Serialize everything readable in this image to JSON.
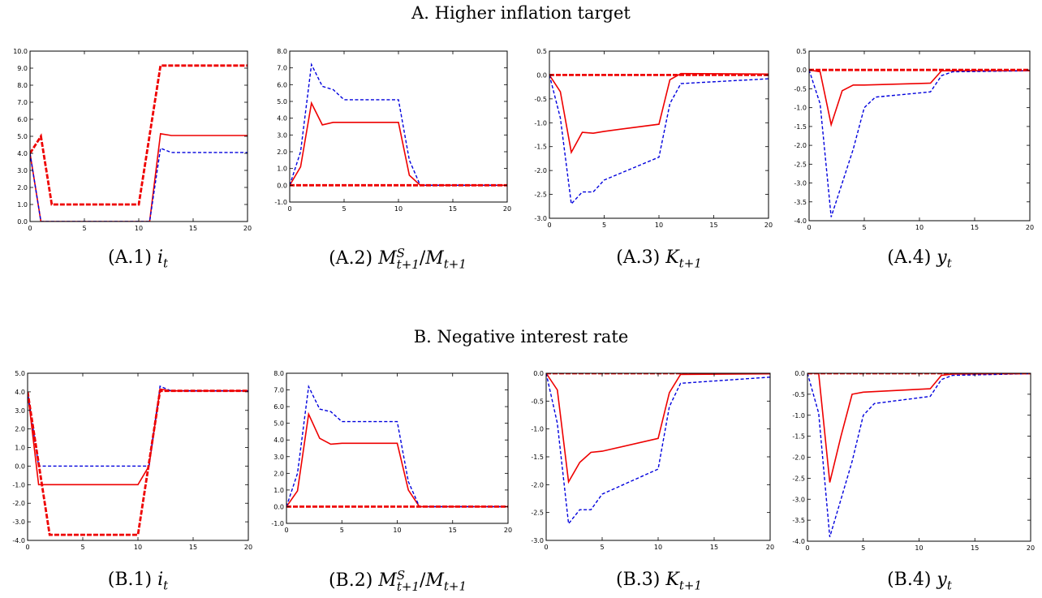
{
  "panels": [
    {
      "title": "A. Higher inflation target"
    },
    {
      "title": "B. Negative interest rate"
    }
  ],
  "colors": {
    "solid": "#ee0000",
    "dashed": "#0000dd",
    "thick_dashed": "#ee0000"
  },
  "chart_data": [
    {
      "id": "A.1",
      "type": "line",
      "caption_prefix": "(A.1)",
      "variable": "i",
      "sub": "t",
      "sup": "",
      "denominator": "",
      "denominator_sub": "",
      "xlim": [
        0,
        20
      ],
      "ylim": [
        0,
        10
      ],
      "xticks": [
        0,
        5,
        10,
        15,
        20
      ],
      "yticks": [
        0.0,
        1.0,
        2.0,
        3.0,
        4.0,
        5.0,
        6.0,
        7.0,
        8.0,
        9.0,
        10.0
      ],
      "ytick_labels": [
        "0.0",
        "1.0",
        "2.0",
        "3.0",
        "4.0",
        "5.0",
        "6.0",
        "7.0",
        "8.0",
        "9.0",
        "10.0"
      ],
      "series": [
        {
          "style": "solid",
          "points": [
            [
              0,
              4.0
            ],
            [
              1,
              0.0
            ],
            [
              2,
              0.0
            ],
            [
              10,
              0.0
            ],
            [
              11,
              0.0
            ],
            [
              12,
              5.15
            ],
            [
              13,
              5.05
            ],
            [
              20,
              5.05
            ]
          ]
        },
        {
          "style": "dashed",
          "points": [
            [
              0,
              4.0
            ],
            [
              1,
              0.0
            ],
            [
              2,
              0.0
            ],
            [
              10,
              0.0
            ],
            [
              11,
              0.0
            ],
            [
              12,
              4.3
            ],
            [
              13,
              4.05
            ],
            [
              20,
              4.05
            ]
          ]
        },
        {
          "style": "thick_dashed",
          "points": [
            [
              0,
              4.0
            ],
            [
              1,
              5.0
            ],
            [
              2,
              1.0
            ],
            [
              10,
              1.0
            ],
            [
              12,
              9.15
            ],
            [
              20,
              9.15
            ]
          ]
        }
      ]
    },
    {
      "id": "A.2",
      "type": "line",
      "caption_prefix": "(A.2)",
      "variable": "M",
      "sub": "t+1",
      "sup": "S",
      "denominator": "M",
      "denominator_sub": "t+1",
      "xlim": [
        0,
        20
      ],
      "ylim": [
        -1,
        8
      ],
      "xticks": [
        0,
        5,
        10,
        15,
        20
      ],
      "yticks": [
        -1.0,
        0.0,
        1.0,
        2.0,
        3.0,
        4.0,
        5.0,
        6.0,
        7.0,
        8.0
      ],
      "ytick_labels": [
        "-1.0",
        "0.0",
        "1.0",
        "2.0",
        "3.0",
        "4.0",
        "5.0",
        "6.0",
        "7.0",
        "8.0"
      ],
      "series": [
        {
          "style": "solid",
          "points": [
            [
              0,
              0.0
            ],
            [
              1,
              1.1
            ],
            [
              2,
              4.9
            ],
            [
              3,
              3.6
            ],
            [
              4,
              3.75
            ],
            [
              5,
              3.75
            ],
            [
              10,
              3.75
            ],
            [
              11,
              0.6
            ],
            [
              12,
              0.0
            ],
            [
              20,
              0.0
            ]
          ]
        },
        {
          "style": "dashed",
          "points": [
            [
              0,
              0.0
            ],
            [
              1,
              2.0
            ],
            [
              2,
              7.2
            ],
            [
              3,
              5.9
            ],
            [
              4,
              5.7
            ],
            [
              5,
              5.1
            ],
            [
              10,
              5.1
            ],
            [
              11,
              1.5
            ],
            [
              12,
              0.0
            ],
            [
              20,
              0.0
            ]
          ]
        },
        {
          "style": "thick_dashed",
          "points": [
            [
              0,
              0.0
            ],
            [
              20,
              0.0
            ]
          ]
        }
      ]
    },
    {
      "id": "A.3",
      "type": "line",
      "caption_prefix": "(A.3)",
      "variable": "K",
      "sub": "t+1",
      "sup": "",
      "denominator": "",
      "denominator_sub": "",
      "xlim": [
        0,
        20
      ],
      "ylim": [
        -3,
        0.5
      ],
      "xticks": [
        0,
        5,
        10,
        15,
        20
      ],
      "yticks": [
        -3.0,
        -2.5,
        -2.0,
        -1.5,
        -1.0,
        -0.5,
        0.0,
        0.5
      ],
      "ytick_labels": [
        "-3.0",
        "-2.5",
        "-2.0",
        "-1.5",
        "-1.0",
        "-0.5",
        "0.0",
        "0.5"
      ],
      "series": [
        {
          "style": "solid",
          "points": [
            [
              0,
              0.0
            ],
            [
              1,
              -0.35
            ],
            [
              2,
              -1.62
            ],
            [
              3,
              -1.2
            ],
            [
              4,
              -1.22
            ],
            [
              5,
              -1.18
            ],
            [
              10,
              -1.03
            ],
            [
              11,
              -0.1
            ],
            [
              12,
              0.03
            ],
            [
              20,
              0.02
            ]
          ]
        },
        {
          "style": "dashed",
          "points": [
            [
              0,
              0.0
            ],
            [
              1,
              -0.9
            ],
            [
              2,
              -2.7
            ],
            [
              3,
              -2.45
            ],
            [
              4,
              -2.45
            ],
            [
              5,
              -2.2
            ],
            [
              10,
              -1.72
            ],
            [
              11,
              -0.6
            ],
            [
              12,
              -0.18
            ],
            [
              20,
              -0.08
            ]
          ]
        },
        {
          "style": "thick_dashed",
          "points": [
            [
              0,
              0.0
            ],
            [
              20,
              0.0
            ]
          ]
        }
      ]
    },
    {
      "id": "A.4",
      "type": "line",
      "caption_prefix": "(A.4)",
      "variable": "y",
      "sub": "t",
      "sup": "",
      "denominator": "",
      "denominator_sub": "",
      "xlim": [
        0,
        20
      ],
      "ylim": [
        -4,
        0.5
      ],
      "xticks": [
        0,
        5,
        10,
        15,
        20
      ],
      "yticks": [
        -4.0,
        -3.5,
        -3.0,
        -2.5,
        -2.0,
        -1.5,
        -1.0,
        -0.5,
        0.0,
        0.5
      ],
      "ytick_labels": [
        "-4.0",
        "-3.5",
        "-3.0",
        "-2.5",
        "-2.0",
        "-1.5",
        "-1.0",
        "-0.5",
        "0.0",
        "0.5"
      ],
      "series": [
        {
          "style": "solid",
          "points": [
            [
              0,
              0.0
            ],
            [
              1,
              -0.05
            ],
            [
              2,
              -1.45
            ],
            [
              3,
              -0.55
            ],
            [
              4,
              -0.4
            ],
            [
              5,
              -0.4
            ],
            [
              11,
              -0.35
            ],
            [
              12,
              -0.02
            ],
            [
              20,
              -0.02
            ]
          ]
        },
        {
          "style": "dashed",
          "points": [
            [
              0,
              0.0
            ],
            [
              1,
              -0.9
            ],
            [
              2,
              -3.9
            ],
            [
              3,
              -3.0
            ],
            [
              4,
              -2.1
            ],
            [
              5,
              -1.0
            ],
            [
              6,
              -0.72
            ],
            [
              11,
              -0.58
            ],
            [
              12,
              -0.15
            ],
            [
              13,
              -0.05
            ],
            [
              20,
              -0.02
            ]
          ]
        },
        {
          "style": "thick_dashed",
          "points": [
            [
              0,
              0.0
            ],
            [
              20,
              0.0
            ]
          ]
        }
      ]
    },
    {
      "id": "B.1",
      "type": "line",
      "caption_prefix": "(B.1)",
      "variable": "i",
      "sub": "t",
      "sup": "",
      "denominator": "",
      "denominator_sub": "",
      "xlim": [
        0,
        20
      ],
      "ylim": [
        -4,
        5
      ],
      "xticks": [
        0,
        5,
        10,
        15,
        20
      ],
      "yticks": [
        -4.0,
        -3.0,
        -2.0,
        -1.0,
        0.0,
        1.0,
        2.0,
        3.0,
        4.0,
        5.0
      ],
      "ytick_labels": [
        "-4.0",
        "-3.0",
        "-2.0",
        "-1.0",
        "0.0",
        "1.0",
        "2.0",
        "3.0",
        "4.0",
        "5.0"
      ],
      "series": [
        {
          "style": "solid",
          "points": [
            [
              0,
              4.0
            ],
            [
              1,
              -1.0
            ],
            [
              2,
              -1.0
            ],
            [
              10,
              -1.0
            ],
            [
              11,
              0.0
            ],
            [
              12,
              4.15
            ],
            [
              13,
              4.05
            ],
            [
              20,
              4.05
            ]
          ]
        },
        {
          "style": "dashed",
          "points": [
            [
              0,
              4.0
            ],
            [
              1,
              0.0
            ],
            [
              2,
              0.0
            ],
            [
              10,
              0.0
            ],
            [
              11,
              0.0
            ],
            [
              12,
              4.3
            ],
            [
              13,
              4.05
            ],
            [
              20,
              4.05
            ]
          ]
        },
        {
          "style": "thick_dashed",
          "points": [
            [
              0,
              4.0
            ],
            [
              2,
              -3.7
            ],
            [
              10,
              -3.7
            ],
            [
              12,
              4.05
            ],
            [
              20,
              4.05
            ]
          ]
        }
      ]
    },
    {
      "id": "B.2",
      "type": "line",
      "caption_prefix": "(B.2)",
      "variable": "M",
      "sub": "t+1",
      "sup": "S",
      "denominator": "M",
      "denominator_sub": "t+1",
      "xlim": [
        0,
        20
      ],
      "ylim": [
        -1,
        8
      ],
      "xticks": [
        0,
        5,
        10,
        15,
        20
      ],
      "yticks": [
        -1.0,
        0.0,
        1.0,
        2.0,
        3.0,
        4.0,
        5.0,
        6.0,
        7.0,
        8.0
      ],
      "ytick_labels": [
        "-1.0",
        "0.0",
        "1.0",
        "2.0",
        "3.0",
        "4.0",
        "5.0",
        "6.0",
        "7.0",
        "8.0"
      ],
      "series": [
        {
          "style": "solid",
          "points": [
            [
              0,
              0.0
            ],
            [
              1,
              0.95
            ],
            [
              2,
              5.55
            ],
            [
              3,
              4.1
            ],
            [
              4,
              3.75
            ],
            [
              5,
              3.8
            ],
            [
              10,
              3.8
            ],
            [
              11,
              1.0
            ],
            [
              12,
              0.0
            ],
            [
              20,
              0.0
            ]
          ]
        },
        {
          "style": "dashed",
          "points": [
            [
              0,
              0.0
            ],
            [
              1,
              2.0
            ],
            [
              2,
              7.2
            ],
            [
              3,
              5.85
            ],
            [
              4,
              5.7
            ],
            [
              5,
              5.1
            ],
            [
              10,
              5.1
            ],
            [
              11,
              1.5
            ],
            [
              12,
              0.0
            ],
            [
              20,
              0.0
            ]
          ]
        },
        {
          "style": "thick_dashed",
          "points": [
            [
              0,
              0.0
            ],
            [
              20,
              0.0
            ]
          ]
        }
      ]
    },
    {
      "id": "B.3",
      "type": "line",
      "caption_prefix": "(B.3)",
      "variable": "K",
      "sub": "t+1",
      "sup": "",
      "denominator": "",
      "denominator_sub": "",
      "xlim": [
        0,
        20
      ],
      "ylim": [
        -3,
        0
      ],
      "xticks": [
        0,
        5,
        10,
        15,
        20
      ],
      "yticks": [
        -3.0,
        -2.5,
        -2.0,
        -1.5,
        -1.0,
        -0.5,
        0.0
      ],
      "ytick_labels": [
        "-3.0",
        "-2.5",
        "-2.0",
        "-1.5",
        "-1.0",
        "-0.5",
        "0.0"
      ],
      "series": [
        {
          "style": "solid",
          "points": [
            [
              0,
              0.0
            ],
            [
              1,
              -0.3
            ],
            [
              2,
              -1.95
            ],
            [
              3,
              -1.6
            ],
            [
              4,
              -1.42
            ],
            [
              5,
              -1.4
            ],
            [
              10,
              -1.17
            ],
            [
              11,
              -0.35
            ],
            [
              12,
              -0.02
            ],
            [
              20,
              -0.01
            ]
          ]
        },
        {
          "style": "dashed",
          "points": [
            [
              0,
              0.0
            ],
            [
              1,
              -0.9
            ],
            [
              2,
              -2.7
            ],
            [
              3,
              -2.45
            ],
            [
              4,
              -2.45
            ],
            [
              5,
              -2.17
            ],
            [
              10,
              -1.72
            ],
            [
              11,
              -0.6
            ],
            [
              12,
              -0.18
            ],
            [
              20,
              -0.07
            ]
          ]
        },
        {
          "style": "thick_dashed",
          "points": [
            [
              0,
              0.0
            ],
            [
              20,
              0.0
            ]
          ]
        }
      ]
    },
    {
      "id": "B.4",
      "type": "line",
      "caption_prefix": "(B.4)",
      "variable": "y",
      "sub": "t",
      "sup": "",
      "denominator": "",
      "denominator_sub": "",
      "xlim": [
        0,
        20
      ],
      "ylim": [
        -4,
        0
      ],
      "xticks": [
        0,
        5,
        10,
        15,
        20
      ],
      "yticks": [
        -4.0,
        -3.5,
        -3.0,
        -2.5,
        -2.0,
        -1.5,
        -1.0,
        -0.5,
        0.0
      ],
      "ytick_labels": [
        "-4.0",
        "-3.5",
        "-3.0",
        "-2.5",
        "-2.0",
        "-1.5",
        "-1.0",
        "-0.5",
        "0.0"
      ],
      "series": [
        {
          "style": "solid",
          "points": [
            [
              0,
              0.0
            ],
            [
              1,
              0.0
            ],
            [
              2,
              -2.6
            ],
            [
              3,
              -1.5
            ],
            [
              4,
              -0.5
            ],
            [
              5,
              -0.45
            ],
            [
              11,
              -0.37
            ],
            [
              12,
              -0.05
            ],
            [
              13,
              -0.02
            ],
            [
              20,
              -0.01
            ]
          ]
        },
        {
          "style": "dashed",
          "points": [
            [
              0,
              0.0
            ],
            [
              1,
              -0.95
            ],
            [
              2,
              -3.9
            ],
            [
              3,
              -3.0
            ],
            [
              4,
              -2.1
            ],
            [
              5,
              -1.0
            ],
            [
              6,
              -0.72
            ],
            [
              11,
              -0.55
            ],
            [
              12,
              -0.15
            ],
            [
              13,
              -0.05
            ],
            [
              20,
              -0.01
            ]
          ]
        },
        {
          "style": "thick_dashed",
          "points": [
            [
              0,
              0.0
            ],
            [
              20,
              0.0
            ]
          ]
        }
      ]
    }
  ]
}
